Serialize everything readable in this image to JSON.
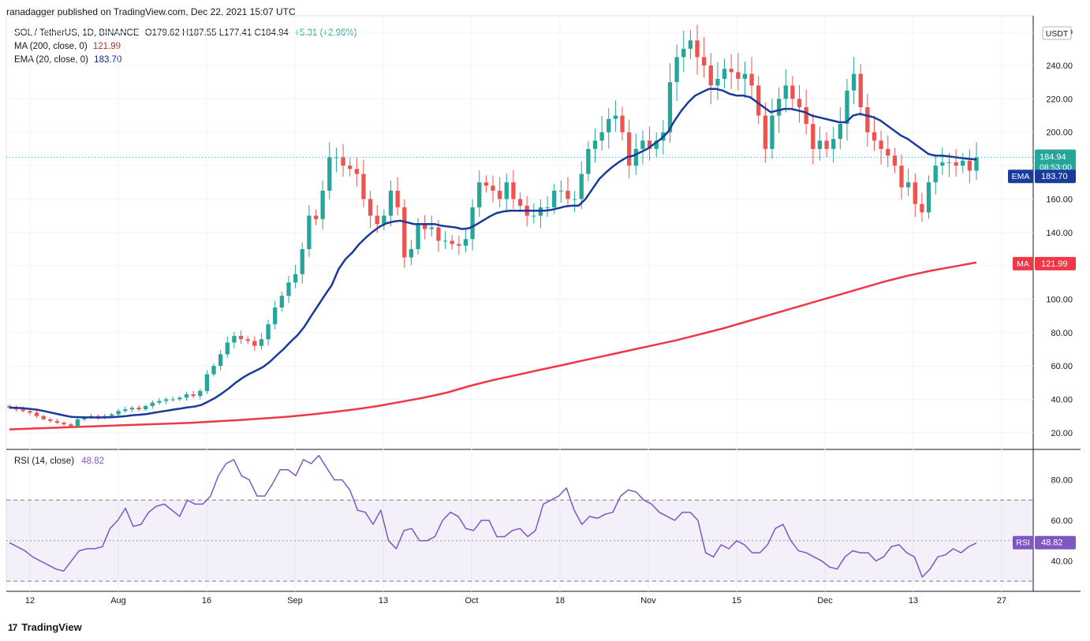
{
  "header": {
    "published": "ranadagger published on TradingView.com, Dec 22, 2021 15:07 UTC"
  },
  "legend": {
    "symbol": "SOL / TetherUS, 1D, BINANCE",
    "ohlc": "O179.62 H187.55 L177.41 C184.94",
    "change": "+5.31 (+2.96%)",
    "ma_label": "MA (200, close, 0)",
    "ma_value": "121.99",
    "ema_label": "EMA (20, close, 0)",
    "ema_value": "183.70"
  },
  "rsi_legend": {
    "label": "RSI (14, close)",
    "value": "48.82"
  },
  "footer": {
    "brand": "TradingView",
    "logo": "17"
  },
  "colors": {
    "up": "#26a69a",
    "down": "#ef5350",
    "ma": "#f23645",
    "ema": "#1a3a9c",
    "rsi": "#7e57c2"
  },
  "chart_data": {
    "type": "candlestick",
    "currency_tag": "USDT",
    "price_axis": {
      "ticks": [
        "20.00",
        "40.00",
        "60.00",
        "80.00",
        "100.00",
        "120.00",
        "140.00",
        "160.00",
        "180.00",
        "200.00",
        "220.00",
        "240.00",
        "260.00"
      ],
      "range": [
        10,
        266
      ]
    },
    "rsi_axis": {
      "ticks": [
        "40.00",
        "60.00",
        "80.00"
      ],
      "range": [
        25,
        95
      ],
      "bands": [
        30,
        70
      ]
    },
    "x_ticks": [
      "12",
      "Aug",
      "16",
      "Sep",
      "13",
      "Oct",
      "18",
      "Nov",
      "15",
      "Dec",
      "13",
      "27"
    ],
    "last_price": {
      "label": "184.94",
      "countdown": "08:53:00"
    },
    "ema_tag": {
      "name": "EMA",
      "value": "183.70"
    },
    "ma_tag": {
      "name": "MA",
      "value": "121.99"
    },
    "rsi_tag": {
      "name": "RSI",
      "value": "48.82"
    },
    "closes": [
      35,
      34,
      33,
      32,
      30,
      28,
      27,
      26,
      25,
      24,
      28,
      29,
      30,
      29,
      30,
      31,
      33,
      34,
      35,
      34,
      36,
      38,
      39,
      40,
      40,
      41,
      43,
      42,
      45,
      55,
      60,
      67,
      74,
      78,
      76,
      75,
      72,
      76,
      85,
      95,
      102,
      110,
      115,
      130,
      150,
      148,
      165,
      185,
      185,
      180,
      178,
      175,
      160,
      150,
      145,
      150,
      165,
      155,
      125,
      130,
      145,
      142,
      143,
      135,
      135,
      133,
      132,
      136,
      155,
      170,
      168,
      165,
      160,
      170,
      160,
      156,
      150,
      150,
      155,
      155,
      165,
      165,
      160,
      160,
      175,
      190,
      195,
      200,
      208,
      210,
      200,
      180,
      190,
      195,
      190,
      195,
      200,
      230,
      245,
      250,
      255,
      245,
      240,
      228,
      232,
      238,
      236,
      232,
      235,
      228,
      210,
      190,
      210,
      220,
      228,
      220,
      215,
      205,
      190,
      195,
      190,
      196,
      205,
      225,
      235,
      215,
      200,
      195,
      190,
      186,
      180,
      167,
      170,
      157,
      152,
      170,
      180,
      182,
      182,
      180,
      183,
      177,
      185
    ],
    "ema": [
      35,
      34.9,
      34.7,
      34.3,
      33.8,
      33,
      32.1,
      31.2,
      30.3,
      29.5,
      29.3,
      29.2,
      29.2,
      29.1,
      29.2,
      29.3,
      29.6,
      30,
      30.5,
      30.8,
      31.2,
      31.9,
      32.6,
      33.2,
      33.9,
      34.5,
      35.2,
      35.7,
      36.7,
      38.7,
      40.9,
      43.6,
      46.6,
      50,
      52.9,
      55.3,
      57.3,
      59.4,
      62.6,
      66.5,
      70.2,
      74.5,
      78.4,
      83.5,
      90,
      96.2,
      102.5,
      108.5,
      118.1,
      124,
      128,
      133,
      137,
      140.5,
      143.5,
      145.5,
      146.5,
      147,
      146,
      145,
      145,
      145,
      145,
      144,
      143.5,
      143,
      142,
      142.5,
      144.5,
      147,
      149.5,
      151.5,
      152.5,
      153,
      153,
      153,
      153,
      153,
      153,
      153.5,
      154.5,
      155.5,
      156,
      156,
      160,
      166,
      172,
      176,
      179.5,
      182.5,
      185,
      186,
      188,
      190,
      193,
      196,
      200,
      207,
      213,
      218,
      222,
      224,
      226,
      226,
      225,
      223,
      222,
      222,
      221,
      218,
      215,
      212,
      213,
      214,
      214,
      213,
      212,
      210,
      209,
      208,
      207,
      206,
      206,
      210,
      211,
      210,
      209,
      207,
      204,
      201,
      198,
      196,
      193,
      190,
      187,
      186,
      186,
      185.5,
      185,
      184.5,
      184,
      183.7
    ],
    "ma": [
      22,
      22.5,
      23,
      23.5,
      24,
      24.5,
      25,
      25.5,
      26,
      26.8,
      27.6,
      28.5,
      29.5,
      30.8,
      32.3,
      34,
      36,
      38.5,
      41,
      44,
      48,
      51.5,
      54.5,
      57.5,
      60.5,
      63.5,
      66.5,
      69.5,
      72.5,
      75.5,
      79,
      82.5,
      86.5,
      90.5,
      94.5,
      98.5,
      102.5,
      106.5,
      110.5,
      114,
      117,
      119.5,
      121.99
    ],
    "rsi": [
      49,
      47,
      45,
      42,
      40,
      38,
      36,
      35,
      40,
      45,
      46,
      46,
      47,
      56,
      60,
      66,
      57,
      58,
      64,
      67,
      68,
      65,
      62,
      70,
      68,
      68,
      72,
      82,
      88,
      90,
      82,
      80,
      72,
      72,
      78,
      85,
      85,
      82,
      90,
      88,
      92,
      86,
      80,
      80,
      75,
      65,
      64,
      58,
      65,
      50,
      46,
      55,
      56,
      50,
      50,
      52,
      60,
      64,
      62,
      56,
      55,
      60,
      60,
      52,
      52,
      55,
      56,
      52,
      55,
      68,
      70,
      72,
      76,
      65,
      58,
      62,
      61,
      63,
      64,
      72,
      75,
      74,
      70,
      68,
      64,
      62,
      60,
      64,
      64,
      60,
      44,
      42,
      48,
      46,
      50,
      48,
      44,
      44,
      48,
      56,
      58,
      50,
      45,
      44,
      42,
      40,
      37,
      36,
      42,
      45,
      44,
      44,
      40,
      42,
      47,
      48,
      44,
      42,
      32,
      36,
      42,
      43,
      46,
      44,
      47,
      48.82
    ]
  }
}
